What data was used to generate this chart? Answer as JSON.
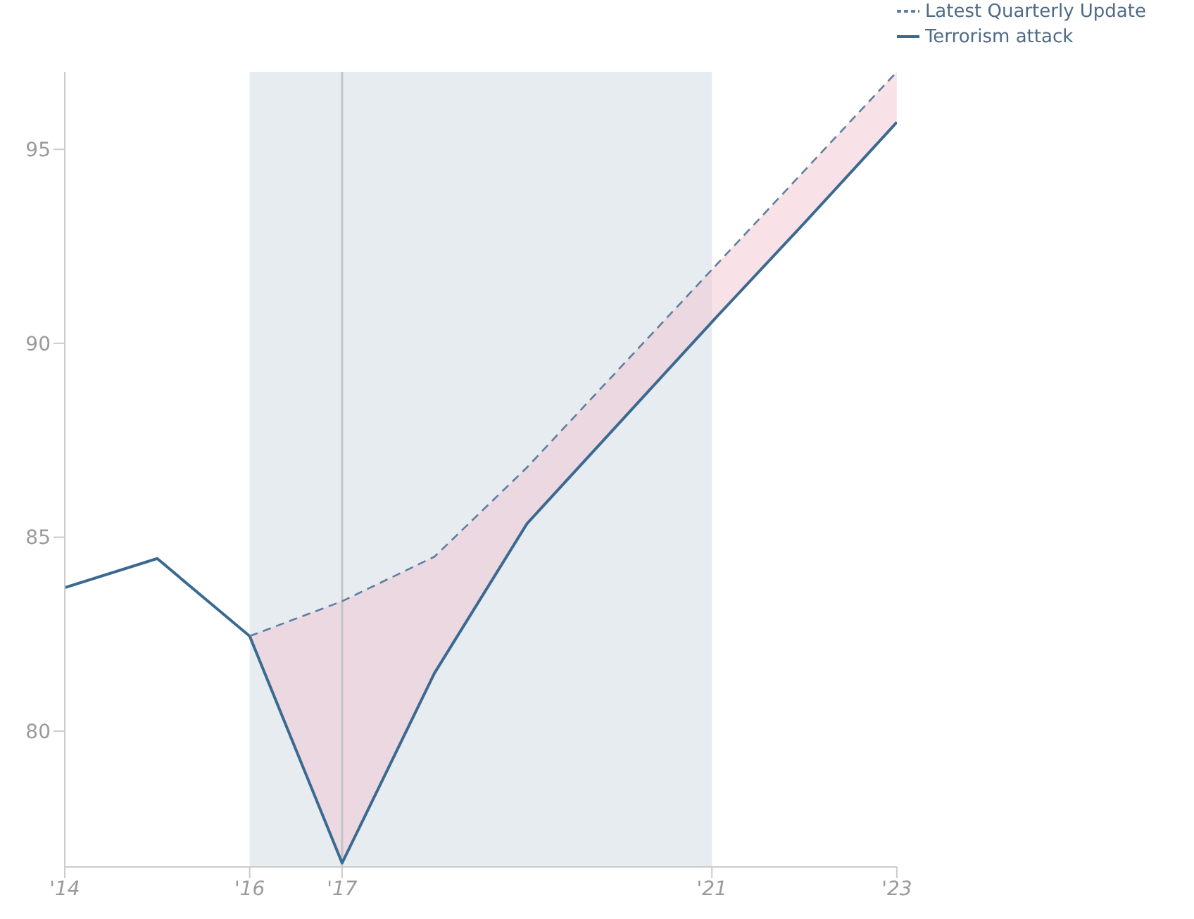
{
  "chart_data": {
    "type": "line",
    "x": [
      2014,
      2015,
      2016,
      2017,
      2018,
      2019,
      2020,
      2021,
      2022,
      2023
    ],
    "series": [
      {
        "name": "Terrorism attack",
        "color": "#3b6a91",
        "line_style": "solid",
        "values": [
          83.7,
          84.45,
          82.45,
          76.6,
          81.5,
          85.35,
          87.95,
          90.55,
          93.1,
          95.7
        ]
      },
      {
        "name": "Latest Quarterly Update",
        "color": "#5f7fa0",
        "line_style": "dashed",
        "values": [
          null,
          null,
          82.45,
          83.35,
          84.5,
          86.8,
          89.35,
          91.9,
          94.45,
          97.0
        ],
        "lower": [
          null,
          null,
          82.45,
          76.6,
          81.5,
          85.35,
          87.95,
          90.55,
          93.1,
          95.7
        ],
        "upper": [
          null,
          null,
          82.45,
          83.35,
          84.5,
          86.8,
          89.35,
          91.9,
          94.45,
          97.0
        ]
      }
    ],
    "xlim": [
      2014,
      2023
    ],
    "xticks": [
      {
        "value": 2014,
        "label": "'14"
      },
      {
        "value": 2016,
        "label": "'16"
      },
      {
        "value": 2017,
        "label": "'17"
      },
      {
        "value": 2021,
        "label": "'21"
      },
      {
        "value": 2023,
        "label": "'23"
      }
    ],
    "ylim": [
      76.5,
      97
    ],
    "yticks": [
      80,
      85,
      90,
      95
    ],
    "bands": [
      {
        "axis": "x",
        "from": 2016,
        "to": 2021,
        "color": "#e7ecf1"
      }
    ],
    "ref_lines": [
      {
        "axis": "x",
        "value": 2017,
        "color": "#c4c4c4",
        "line_style": "solid"
      }
    ],
    "grid": false,
    "legend": "top right",
    "marker": "none"
  }
}
